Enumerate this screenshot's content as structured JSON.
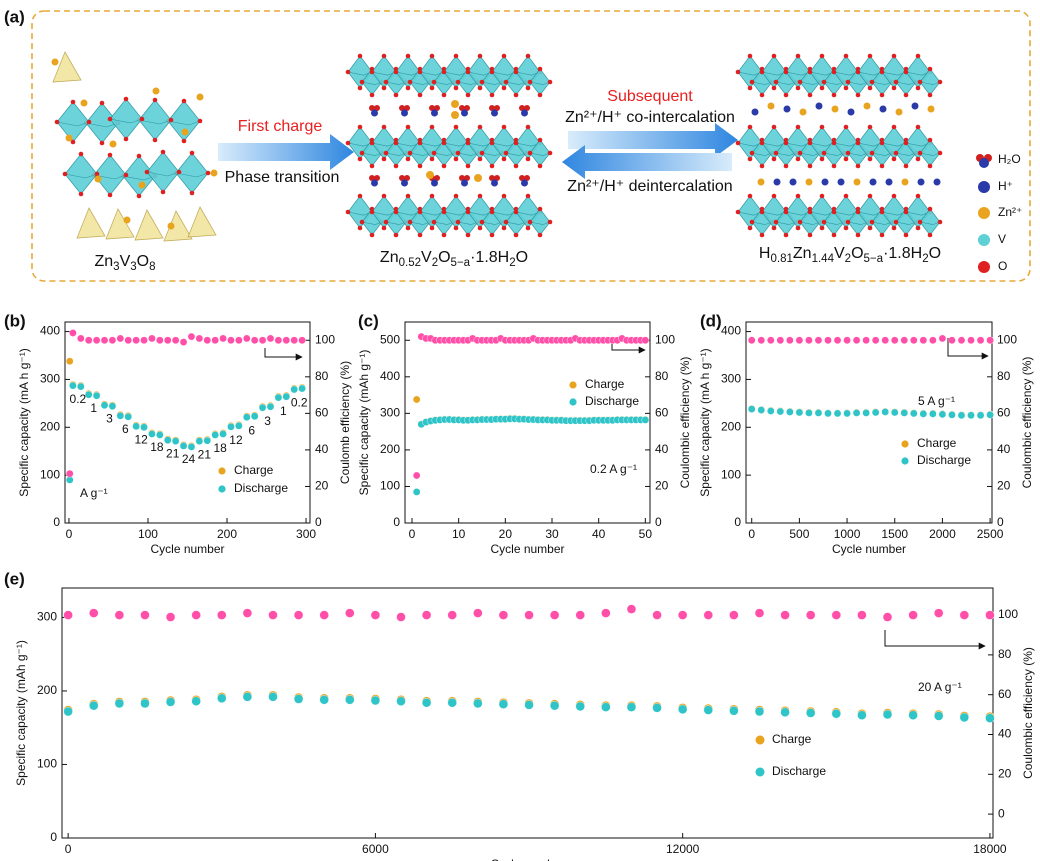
{
  "schematic": {
    "label": "(a)",
    "first_charge": "First charge",
    "phase_transition": "Phase transition",
    "subsequent": "Subsequent",
    "co_intercalation": "Zn²⁺/H⁺ co-intercalation",
    "deintercalation": "Zn²⁺/H⁺ deintercalation",
    "phases": [
      "Zn3V3O8",
      "Zn0.52V2O5−a·1.8H2O",
      "H0.81Zn1.44V2O5−a·1.8H2O"
    ],
    "legend": [
      "H₂O",
      "H⁺",
      "Zn²⁺",
      "V",
      "O"
    ]
  },
  "chart_data": [
    {
      "type": "scatter",
      "label": "(b)",
      "xlabel": "Cycle number",
      "ylabel": "Specific capacity (mA h g⁻¹)",
      "y2label": "Coulomb efficiency (%)",
      "annotation": "A g⁻¹",
      "rate_labels": [
        0.2,
        1,
        3,
        6,
        12,
        18,
        21,
        24,
        21,
        18,
        12,
        6,
        3,
        1,
        0.2
      ],
      "x": [
        1,
        5,
        15,
        25,
        35,
        45,
        55,
        65,
        75,
        85,
        95,
        105,
        115,
        125,
        135,
        145,
        155,
        165,
        175,
        185,
        195,
        205,
        215,
        225,
        235,
        245,
        255,
        265,
        275,
        285,
        295
      ],
      "xlim": [
        -5,
        305
      ],
      "xticks": [
        0,
        100,
        200,
        300
      ],
      "ylim": [
        0,
        420
      ],
      "yticks": [
        0,
        100,
        200,
        300,
        400
      ],
      "y2lim": [
        0,
        110
      ],
      "y2ticks": [
        0,
        20,
        40,
        60,
        80,
        100
      ],
      "series": [
        {
          "name": "Charge",
          "color": "#e8a41e",
          "values": [
            338,
            289,
            287,
            270,
            268,
            248,
            246,
            226,
            224,
            204,
            202,
            188,
            186,
            175,
            173,
            163,
            161,
            173,
            174,
            186,
            188,
            203,
            205,
            223,
            225,
            243,
            245,
            264,
            266,
            281,
            283
          ]
        },
        {
          "name": "Discharge",
          "color": "#2ec4c8",
          "values": [
            90,
            287,
            285,
            268,
            266,
            246,
            244,
            224,
            222,
            202,
            200,
            186,
            184,
            173,
            171,
            161,
            159,
            171,
            172,
            184,
            186,
            201,
            203,
            221,
            223,
            241,
            243,
            262,
            264,
            279,
            281
          ]
        },
        {
          "color": "#ff4fa8",
          "axis": "y2",
          "values": [
            27,
            104,
            101,
            100,
            100,
            100,
            100,
            101,
            100,
            100,
            100,
            101,
            100,
            100,
            100,
            99,
            102,
            101,
            100,
            100,
            101,
            100,
            100,
            101,
            100,
            100,
            101,
            100,
            100,
            100,
            100
          ]
        }
      ]
    },
    {
      "type": "scatter",
      "label": "(c)",
      "xlabel": "Cycle number",
      "ylabel": "Specific capacity (mAh g⁻¹)",
      "y2label": "Coulombic efficiency (%)",
      "annotation": "0.2 A g⁻¹",
      "x": [
        1,
        2,
        3,
        4,
        5,
        6,
        7,
        8,
        9,
        10,
        11,
        12,
        13,
        14,
        15,
        16,
        17,
        18,
        19,
        20,
        21,
        22,
        23,
        24,
        25,
        26,
        27,
        28,
        29,
        30,
        31,
        32,
        33,
        34,
        35,
        36,
        37,
        38,
        39,
        40,
        41,
        42,
        43,
        44,
        45,
        46,
        47,
        48,
        49,
        50
      ],
      "xlim": [
        -1.5,
        51
      ],
      "xticks": [
        0,
        10,
        20,
        30,
        40,
        50
      ],
      "ylim": [
        0,
        550
      ],
      "yticks": [
        0,
        100,
        200,
        300,
        400,
        500
      ],
      "y2lim": [
        0,
        110
      ],
      "y2ticks": [
        0,
        20,
        40,
        60,
        80,
        100
      ],
      "series": [
        {
          "name": "Charge",
          "color": "#e8a41e",
          "values": [
            338,
            271,
            277,
            280,
            282,
            283,
            284,
            284,
            283,
            283,
            282,
            282,
            283,
            283,
            284,
            284,
            284,
            285,
            285,
            285,
            286,
            286,
            285,
            285,
            284,
            284,
            283,
            283,
            283,
            282,
            282,
            282,
            281,
            281,
            281,
            281,
            281,
            281,
            282,
            282,
            282,
            282,
            282,
            283,
            283,
            283,
            283,
            283,
            283,
            283
          ]
        },
        {
          "name": "Discharge",
          "color": "#2ec4c8",
          "values": [
            85,
            270,
            276,
            279,
            281,
            282,
            283,
            283,
            282,
            282,
            281,
            281,
            282,
            282,
            283,
            283,
            283,
            284,
            284,
            284,
            285,
            285,
            284,
            284,
            283,
            283,
            282,
            282,
            282,
            281,
            281,
            281,
            280,
            280,
            280,
            280,
            280,
            280,
            281,
            281,
            281,
            281,
            281,
            282,
            282,
            282,
            282,
            282,
            282,
            282
          ]
        },
        {
          "color": "#ff4fa8",
          "axis": "y2",
          "values": [
            26,
            102,
            101,
            101,
            100,
            100,
            100,
            100,
            100,
            100,
            100,
            100,
            101,
            100,
            100,
            100,
            100,
            100,
            101,
            100,
            100,
            100,
            100,
            100,
            100,
            101,
            100,
            100,
            100,
            100,
            100,
            100,
            100,
            100,
            101,
            100,
            100,
            100,
            100,
            100,
            100,
            100,
            100,
            100,
            101,
            100,
            100,
            100,
            100,
            100
          ]
        }
      ]
    },
    {
      "type": "scatter",
      "label": "(d)",
      "xlabel": "Cycle number",
      "ylabel": "Specific capacity (mA h g⁻¹)",
      "y2label": "Coulombic efficiency (%)",
      "annotation": "5 A g⁻¹",
      "x": [
        0,
        100,
        200,
        300,
        400,
        500,
        600,
        700,
        800,
        900,
        1000,
        1100,
        1200,
        1300,
        1400,
        1500,
        1600,
        1700,
        1800,
        1900,
        2000,
        2100,
        2200,
        2300,
        2400,
        2500
      ],
      "xlim": [
        -60,
        2520
      ],
      "xticks": [
        0,
        500,
        1000,
        1500,
        2000,
        2500
      ],
      "ylim": [
        0,
        420
      ],
      "yticks": [
        0,
        100,
        200,
        300,
        400
      ],
      "y2lim": [
        0,
        110
      ],
      "y2ticks": [
        0,
        20,
        40,
        60,
        80,
        100
      ],
      "series": [
        {
          "name": "Charge",
          "color": "#e8a41e",
          "values": [
            239,
            237,
            235,
            234,
            233,
            232,
            231,
            231,
            230,
            230,
            230,
            231,
            231,
            232,
            233,
            232,
            231,
            230,
            229,
            229,
            228,
            227,
            226,
            226,
            226,
            227
          ]
        },
        {
          "name": "Discharge",
          "color": "#2ec4c8",
          "values": [
            238,
            236,
            234,
            233,
            232,
            231,
            230,
            230,
            229,
            229,
            229,
            230,
            230,
            231,
            232,
            231,
            230,
            229,
            228,
            228,
            227,
            226,
            225,
            225,
            225,
            226
          ]
        },
        {
          "color": "#ff4fa8",
          "axis": "y2",
          "values": [
            100,
            100,
            100,
            100,
            100,
            100,
            100,
            100,
            100,
            100,
            100,
            100,
            100,
            100,
            100,
            100,
            100,
            100,
            100,
            100,
            101,
            100,
            100,
            100,
            100,
            100
          ]
        }
      ]
    },
    {
      "type": "scatter",
      "label": "(e)",
      "xlabel": "Cycle number",
      "ylabel": "Specific capacity (mAh g⁻¹)",
      "y2label": "Coulombic efficiency (%)",
      "annotation": "20 A g⁻¹",
      "x": [
        0,
        500,
        1000,
        1500,
        2000,
        2500,
        3000,
        3500,
        4000,
        4500,
        5000,
        5500,
        6000,
        6500,
        7000,
        7500,
        8000,
        8500,
        9000,
        9500,
        10000,
        10500,
        11000,
        11500,
        12000,
        12500,
        13000,
        13500,
        14000,
        14500,
        15000,
        15500,
        16000,
        16500,
        17000,
        17500,
        18000
      ],
      "xlim": [
        -120,
        18060
      ],
      "xticks": [
        0,
        6000,
        12000,
        18000
      ],
      "ylim": [
        0,
        340
      ],
      "yticks": [
        0,
        100,
        200,
        300
      ],
      "y2lim": [
        -12,
        113.6
      ],
      "y2ticks": [
        0,
        20,
        40,
        60,
        80,
        100
      ],
      "series": [
        {
          "name": "Charge",
          "color": "#e8a41e",
          "values": [
            174,
            182,
            185,
            185,
            187,
            188,
            192,
            194,
            194,
            191,
            190,
            190,
            189,
            188,
            186,
            186,
            185,
            184,
            183,
            182,
            181,
            180,
            180,
            179,
            177,
            176,
            175,
            174,
            173,
            172,
            171,
            169,
            170,
            169,
            168,
            166,
            165
          ]
        },
        {
          "name": "Discharge",
          "color": "#2ec4c8",
          "values": [
            172,
            180,
            183,
            183,
            185,
            186,
            190,
            192,
            192,
            189,
            188,
            188,
            187,
            186,
            184,
            184,
            183,
            182,
            181,
            180,
            179,
            178,
            178,
            177,
            175,
            174,
            173,
            172,
            171,
            170,
            169,
            167,
            168,
            167,
            166,
            164,
            163
          ]
        },
        {
          "color": "#ff4fa8",
          "axis": "y2",
          "values": [
            100,
            101,
            100,
            100,
            99,
            100,
            100,
            101,
            100,
            100,
            100,
            101,
            100,
            99,
            100,
            100,
            101,
            100,
            100,
            100,
            100,
            101,
            103,
            100,
            100,
            100,
            100,
            101,
            100,
            100,
            100,
            100,
            99,
            100,
            101,
            100,
            100
          ]
        }
      ]
    }
  ]
}
